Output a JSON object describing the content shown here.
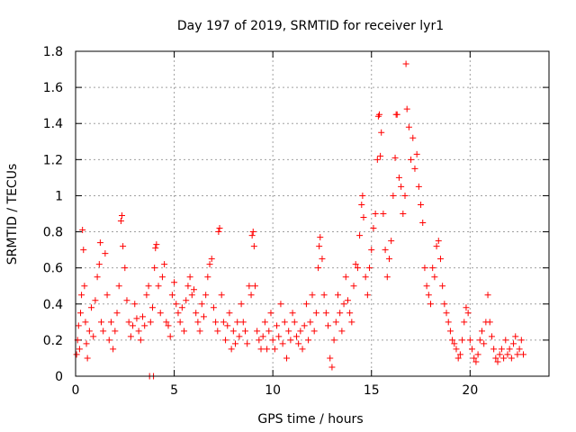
{
  "chart_data": {
    "type": "scatter",
    "title": "Day 197 of 2019, SRMTID for receiver lyr1",
    "xlabel": "GPS time / hours",
    "ylabel": "SRMTID / TECUs",
    "xlim": [
      0,
      24
    ],
    "ylim": [
      0,
      1.8
    ],
    "xticks": [
      0,
      5,
      10,
      15,
      20
    ],
    "xtick_labels": [
      "0",
      "5",
      "10",
      "15",
      "20"
    ],
    "yticks": [
      0,
      0.2,
      0.4,
      0.6,
      0.8,
      1,
      1.2,
      1.4,
      1.6,
      1.8
    ],
    "ytick_labels": [
      "0",
      "0.2",
      "0.4",
      "0.6",
      "0.8",
      "1",
      "1.2",
      "1.4",
      "1.6",
      "1.8"
    ],
    "grid": true,
    "marker": "+",
    "color": "#ff0000",
    "series": [
      {
        "name": "SRMTID",
        "points": [
          [
            0.05,
            0.12
          ],
          [
            0.1,
            0.2
          ],
          [
            0.15,
            0.28
          ],
          [
            0.2,
            0.15
          ],
          [
            0.25,
            0.35
          ],
          [
            0.3,
            0.45
          ],
          [
            0.35,
            0.81
          ],
          [
            0.4,
            0.7
          ],
          [
            0.45,
            0.5
          ],
          [
            0.5,
            0.3
          ],
          [
            0.55,
            0.18
          ],
          [
            0.6,
            0.1
          ],
          [
            0.7,
            0.25
          ],
          [
            0.8,
            0.38
          ],
          [
            0.9,
            0.22
          ],
          [
            1.0,
            0.42
          ],
          [
            1.1,
            0.55
          ],
          [
            1.2,
            0.62
          ],
          [
            1.25,
            0.74
          ],
          [
            1.3,
            0.3
          ],
          [
            1.4,
            0.25
          ],
          [
            1.5,
            0.68
          ],
          [
            1.6,
            0.45
          ],
          [
            1.7,
            0.2
          ],
          [
            1.8,
            0.3
          ],
          [
            1.9,
            0.15
          ],
          [
            2.0,
            0.25
          ],
          [
            2.1,
            0.35
          ],
          [
            2.2,
            0.5
          ],
          [
            2.3,
            0.86
          ],
          [
            2.35,
            0.89
          ],
          [
            2.4,
            0.72
          ],
          [
            2.5,
            0.6
          ],
          [
            2.6,
            0.42
          ],
          [
            2.7,
            0.3
          ],
          [
            2.8,
            0.22
          ],
          [
            2.9,
            0.28
          ],
          [
            3.0,
            0.4
          ],
          [
            3.1,
            0.32
          ],
          [
            3.2,
            0.25
          ],
          [
            3.3,
            0.2
          ],
          [
            3.4,
            0.33
          ],
          [
            3.5,
            0.28
          ],
          [
            3.6,
            0.45
          ],
          [
            3.7,
            0.5
          ],
          [
            3.75,
            0.0
          ],
          [
            3.8,
            0.3
          ],
          [
            3.9,
            0.38
          ],
          [
            3.95,
            0.0
          ],
          [
            4.0,
            0.6
          ],
          [
            4.05,
            0.71
          ],
          [
            4.1,
            0.73
          ],
          [
            4.2,
            0.5
          ],
          [
            4.3,
            0.35
          ],
          [
            4.4,
            0.55
          ],
          [
            4.5,
            0.62
          ],
          [
            4.6,
            0.3
          ],
          [
            4.7,
            0.28
          ],
          [
            4.8,
            0.22
          ],
          [
            4.9,
            0.45
          ],
          [
            5.0,
            0.52
          ],
          [
            5.1,
            0.4
          ],
          [
            5.2,
            0.35
          ],
          [
            5.3,
            0.3
          ],
          [
            5.4,
            0.38
          ],
          [
            5.5,
            0.25
          ],
          [
            5.6,
            0.42
          ],
          [
            5.7,
            0.5
          ],
          [
            5.8,
            0.55
          ],
          [
            5.9,
            0.45
          ],
          [
            6.0,
            0.48
          ],
          [
            6.1,
            0.35
          ],
          [
            6.2,
            0.3
          ],
          [
            6.3,
            0.25
          ],
          [
            6.4,
            0.4
          ],
          [
            6.5,
            0.33
          ],
          [
            6.6,
            0.45
          ],
          [
            6.7,
            0.55
          ],
          [
            6.8,
            0.62
          ],
          [
            6.9,
            0.65
          ],
          [
            7.0,
            0.38
          ],
          [
            7.1,
            0.3
          ],
          [
            7.2,
            0.25
          ],
          [
            7.25,
            0.8
          ],
          [
            7.3,
            0.82
          ],
          [
            7.4,
            0.45
          ],
          [
            7.5,
            0.3
          ],
          [
            7.6,
            0.2
          ],
          [
            7.7,
            0.28
          ],
          [
            7.8,
            0.35
          ],
          [
            7.9,
            0.15
          ],
          [
            8.0,
            0.25
          ],
          [
            8.1,
            0.18
          ],
          [
            8.2,
            0.3
          ],
          [
            8.3,
            0.22
          ],
          [
            8.4,
            0.4
          ],
          [
            8.5,
            0.3
          ],
          [
            8.6,
            0.25
          ],
          [
            8.7,
            0.18
          ],
          [
            8.8,
            0.5
          ],
          [
            8.9,
            0.45
          ],
          [
            8.95,
            0.78
          ],
          [
            9.0,
            0.8
          ],
          [
            9.05,
            0.72
          ],
          [
            9.1,
            0.5
          ],
          [
            9.2,
            0.25
          ],
          [
            9.3,
            0.2
          ],
          [
            9.4,
            0.15
          ],
          [
            9.5,
            0.22
          ],
          [
            9.6,
            0.3
          ],
          [
            9.7,
            0.15
          ],
          [
            9.8,
            0.25
          ],
          [
            9.9,
            0.35
          ],
          [
            10.0,
            0.2
          ],
          [
            10.1,
            0.15
          ],
          [
            10.2,
            0.28
          ],
          [
            10.3,
            0.22
          ],
          [
            10.4,
            0.4
          ],
          [
            10.5,
            0.18
          ],
          [
            10.6,
            0.3
          ],
          [
            10.7,
            0.1
          ],
          [
            10.8,
            0.25
          ],
          [
            10.9,
            0.2
          ],
          [
            11.0,
            0.35
          ],
          [
            11.1,
            0.3
          ],
          [
            11.2,
            0.22
          ],
          [
            11.3,
            0.18
          ],
          [
            11.4,
            0.25
          ],
          [
            11.5,
            0.15
          ],
          [
            11.6,
            0.28
          ],
          [
            11.7,
            0.4
          ],
          [
            11.8,
            0.2
          ],
          [
            11.9,
            0.3
          ],
          [
            12.0,
            0.45
          ],
          [
            12.1,
            0.25
          ],
          [
            12.2,
            0.35
          ],
          [
            12.3,
            0.6
          ],
          [
            12.35,
            0.72
          ],
          [
            12.4,
            0.77
          ],
          [
            12.5,
            0.65
          ],
          [
            12.6,
            0.45
          ],
          [
            12.7,
            0.35
          ],
          [
            12.8,
            0.28
          ],
          [
            12.9,
            0.1
          ],
          [
            13.0,
            0.05
          ],
          [
            13.1,
            0.2
          ],
          [
            13.2,
            0.3
          ],
          [
            13.3,
            0.45
          ],
          [
            13.4,
            0.35
          ],
          [
            13.5,
            0.25
          ],
          [
            13.6,
            0.4
          ],
          [
            13.7,
            0.55
          ],
          [
            13.8,
            0.42
          ],
          [
            13.9,
            0.35
          ],
          [
            14.0,
            0.3
          ],
          [
            14.1,
            0.5
          ],
          [
            14.2,
            0.62
          ],
          [
            14.3,
            0.6
          ],
          [
            14.4,
            0.78
          ],
          [
            14.5,
            0.95
          ],
          [
            14.55,
            1.0
          ],
          [
            14.6,
            0.88
          ],
          [
            14.7,
            0.55
          ],
          [
            14.8,
            0.45
          ],
          [
            14.9,
            0.6
          ],
          [
            15.0,
            0.7
          ],
          [
            15.1,
            0.82
          ],
          [
            15.2,
            0.9
          ],
          [
            15.3,
            1.2
          ],
          [
            15.35,
            1.44
          ],
          [
            15.4,
            1.45
          ],
          [
            15.45,
            1.22
          ],
          [
            15.5,
            1.35
          ],
          [
            15.6,
            0.9
          ],
          [
            15.7,
            0.7
          ],
          [
            15.8,
            0.55
          ],
          [
            15.9,
            0.65
          ],
          [
            16.0,
            0.75
          ],
          [
            16.1,
            1.0
          ],
          [
            16.2,
            1.21
          ],
          [
            16.25,
            1.45
          ],
          [
            16.3,
            1.45
          ],
          [
            16.4,
            1.1
          ],
          [
            16.5,
            1.05
          ],
          [
            16.6,
            0.9
          ],
          [
            16.7,
            1.0
          ],
          [
            16.75,
            1.73
          ],
          [
            16.8,
            1.48
          ],
          [
            16.9,
            1.38
          ],
          [
            17.0,
            1.2
          ],
          [
            17.1,
            1.32
          ],
          [
            17.2,
            1.15
          ],
          [
            17.3,
            1.23
          ],
          [
            17.4,
            1.05
          ],
          [
            17.5,
            0.95
          ],
          [
            17.6,
            0.85
          ],
          [
            17.7,
            0.6
          ],
          [
            17.8,
            0.5
          ],
          [
            17.9,
            0.45
          ],
          [
            18.0,
            0.4
          ],
          [
            18.1,
            0.6
          ],
          [
            18.2,
            0.55
          ],
          [
            18.3,
            0.72
          ],
          [
            18.4,
            0.75
          ],
          [
            18.5,
            0.65
          ],
          [
            18.6,
            0.5
          ],
          [
            18.7,
            0.4
          ],
          [
            18.8,
            0.35
          ],
          [
            18.9,
            0.3
          ],
          [
            19.0,
            0.25
          ],
          [
            19.1,
            0.2
          ],
          [
            19.2,
            0.18
          ],
          [
            19.3,
            0.15
          ],
          [
            19.4,
            0.1
          ],
          [
            19.5,
            0.12
          ],
          [
            19.6,
            0.2
          ],
          [
            19.7,
            0.3
          ],
          [
            19.8,
            0.38
          ],
          [
            19.9,
            0.35
          ],
          [
            20.0,
            0.2
          ],
          [
            20.1,
            0.15
          ],
          [
            20.2,
            0.1
          ],
          [
            20.3,
            0.08
          ],
          [
            20.4,
            0.12
          ],
          [
            20.5,
            0.2
          ],
          [
            20.6,
            0.25
          ],
          [
            20.7,
            0.18
          ],
          [
            20.8,
            0.3
          ],
          [
            20.9,
            0.45
          ],
          [
            21.0,
            0.3
          ],
          [
            21.1,
            0.22
          ],
          [
            21.2,
            0.15
          ],
          [
            21.3,
            0.1
          ],
          [
            21.4,
            0.08
          ],
          [
            21.5,
            0.12
          ],
          [
            21.6,
            0.15
          ],
          [
            21.7,
            0.1
          ],
          [
            21.8,
            0.2
          ],
          [
            21.9,
            0.12
          ],
          [
            22.0,
            0.15
          ],
          [
            22.1,
            0.1
          ],
          [
            22.2,
            0.18
          ],
          [
            22.3,
            0.22
          ],
          [
            22.4,
            0.12
          ],
          [
            22.5,
            0.15
          ],
          [
            22.6,
            0.2
          ],
          [
            22.7,
            0.12
          ]
        ]
      }
    ]
  }
}
